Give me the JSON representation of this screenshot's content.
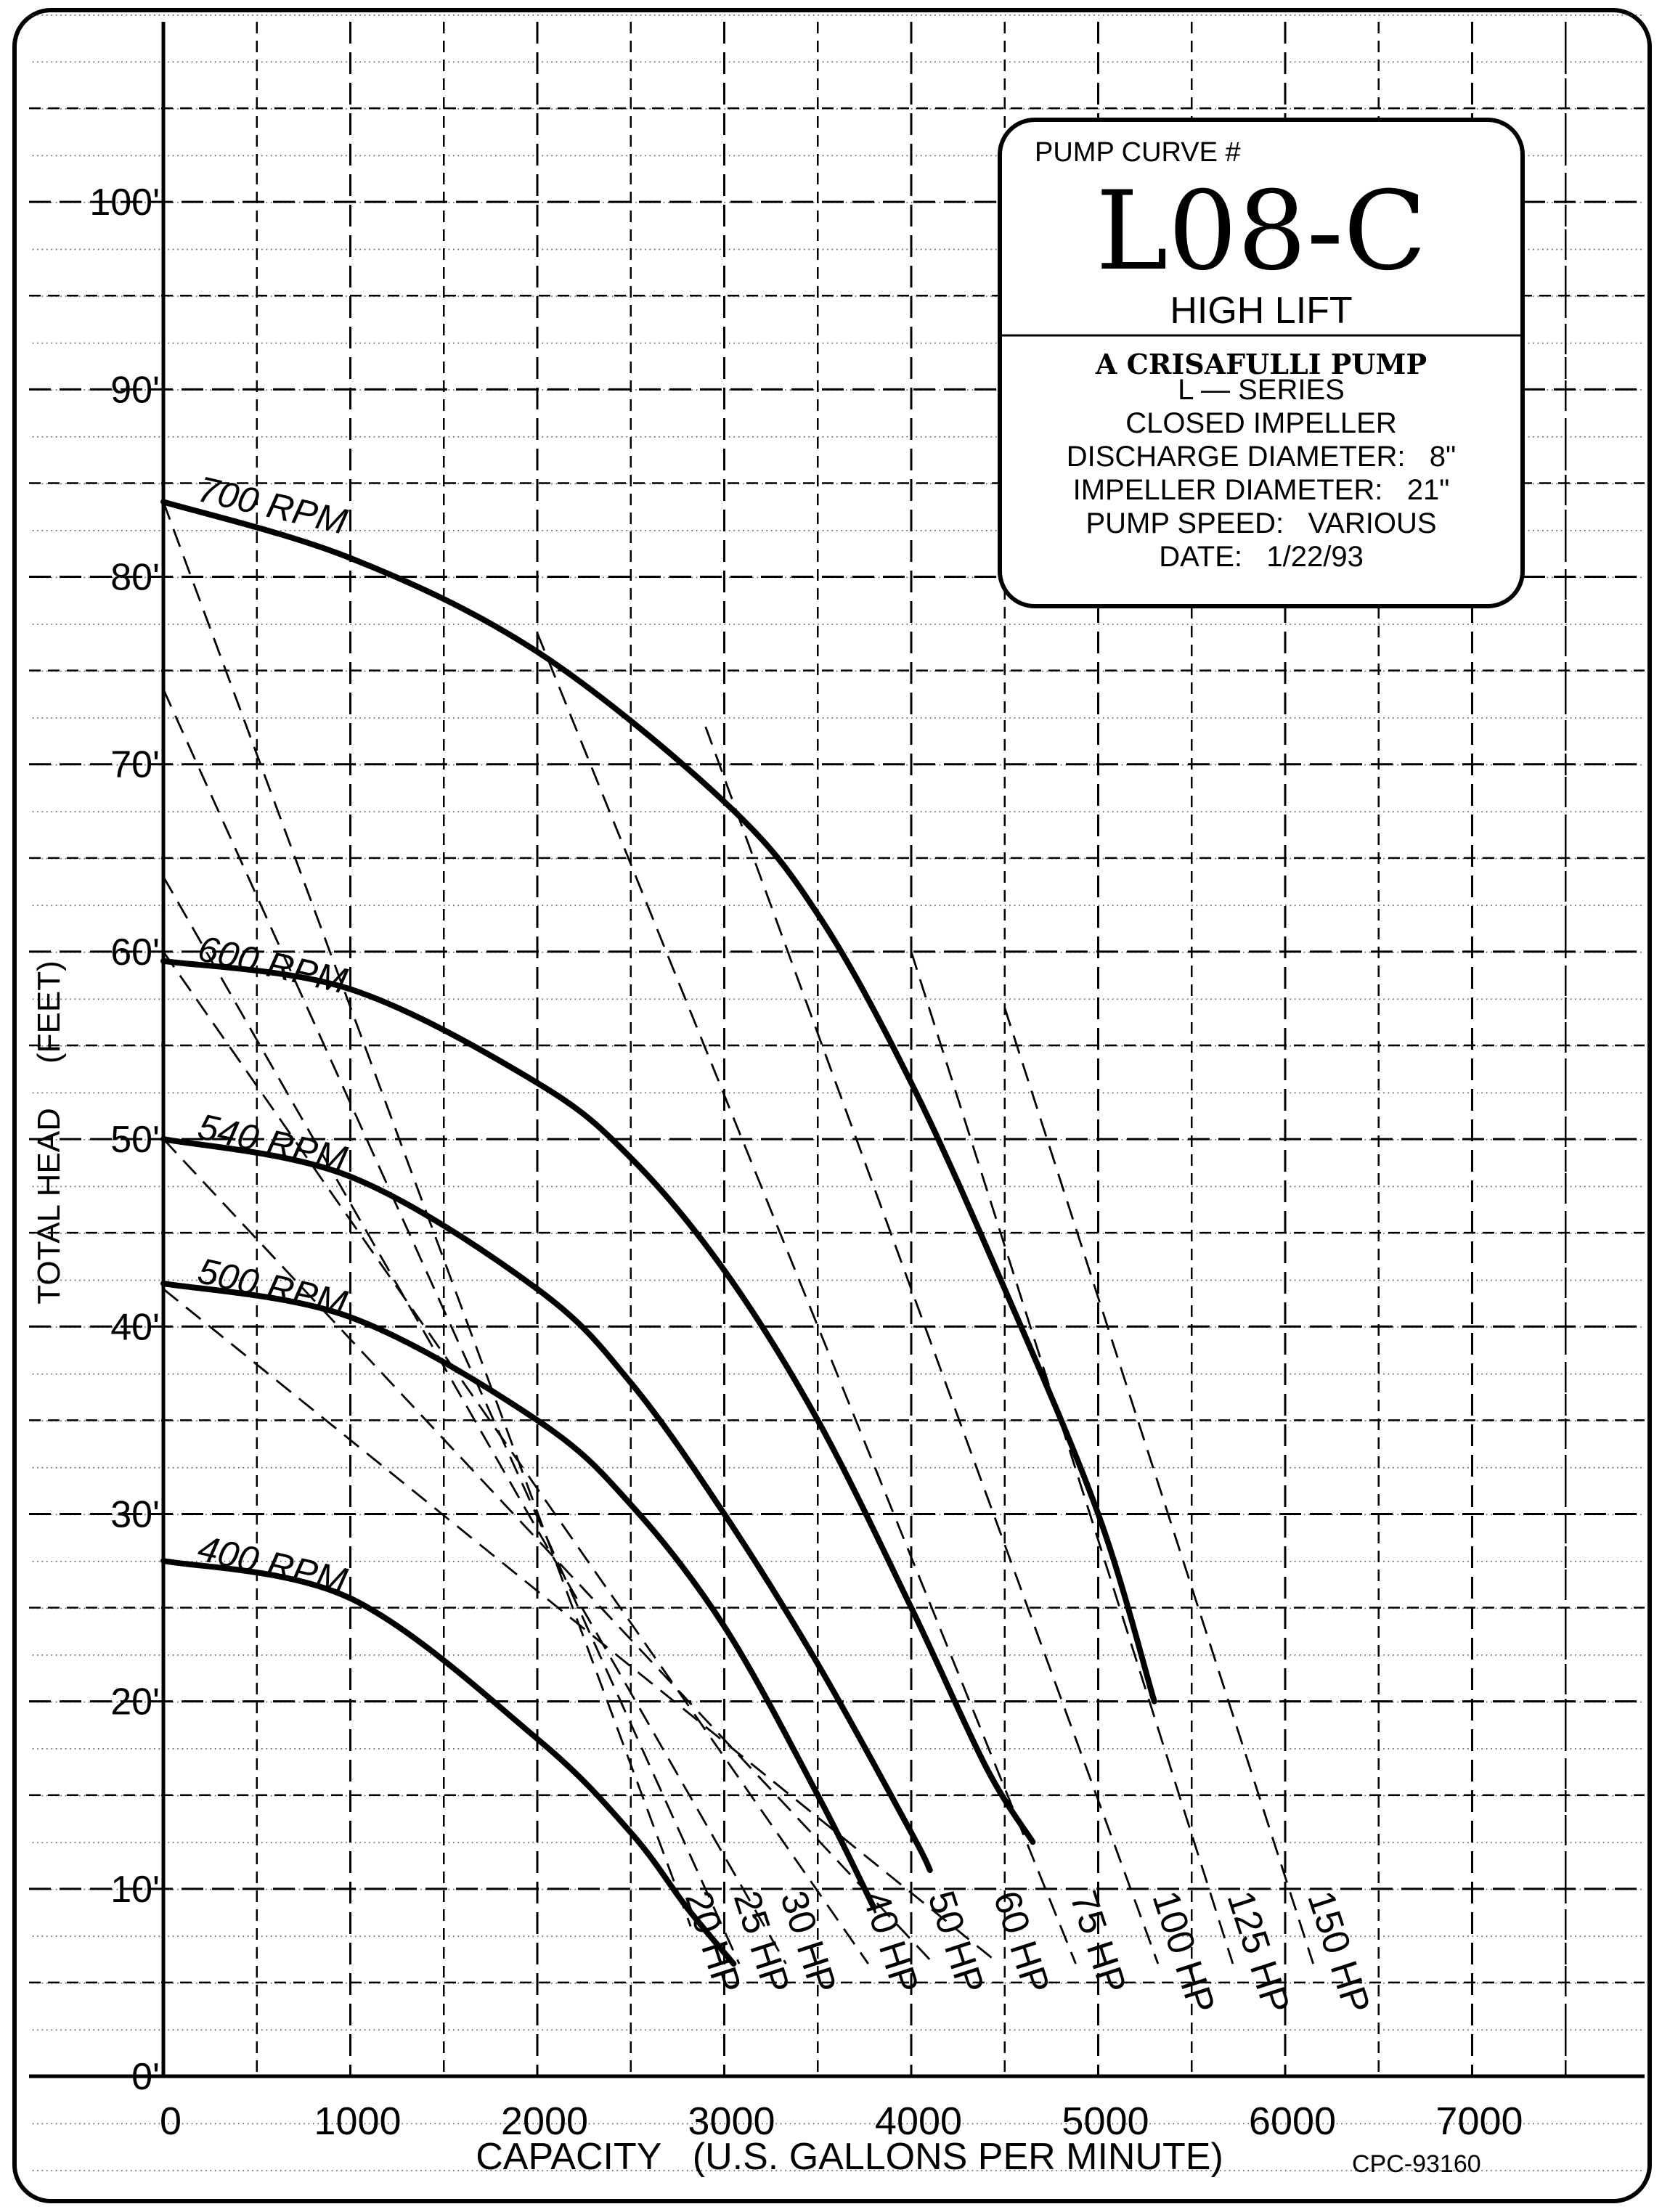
{
  "chart_data": {
    "type": "line",
    "title_box": {
      "label": "PUMP CURVE #",
      "model": "L08-C",
      "subtitle": "HIGH LIFT",
      "maker": "A CRISAFULLI PUMP",
      "specs": [
        {
          "label": "L — SERIES",
          "value": ""
        },
        {
          "label": "CLOSED IMPELLER",
          "value": ""
        },
        {
          "label": "DISCHARGE DIAMETER:",
          "value": "8\""
        },
        {
          "label": "IMPELLER DIAMETER:",
          "value": "21\""
        },
        {
          "label": "PUMP SPEED:",
          "value": "VARIOUS"
        },
        {
          "label": "DATE:",
          "value": "1/22/93"
        }
      ]
    },
    "xlabel": "CAPACITY   (U.S. GALLONS PER MINUTE)",
    "ylabel": "TOTAL HEAD     (FEET)",
    "xlim": [
      0,
      8000
    ],
    "ylim": [
      0,
      110
    ],
    "x_ticks": [
      {
        "value": 0,
        "label": "0"
      },
      {
        "value": 1000,
        "label": "1000"
      },
      {
        "value": 2000,
        "label": "2000"
      },
      {
        "value": 3000,
        "label": "3000"
      },
      {
        "value": 4000,
        "label": "4000"
      },
      {
        "value": 5000,
        "label": "5000"
      },
      {
        "value": 6000,
        "label": "6000"
      },
      {
        "value": 7000,
        "label": "7000"
      }
    ],
    "y_ticks": [
      {
        "value": 0,
        "label": "0'"
      },
      {
        "value": 10,
        "label": "10'"
      },
      {
        "value": 20,
        "label": "20'"
      },
      {
        "value": 30,
        "label": "30'"
      },
      {
        "value": 40,
        "label": "40'"
      },
      {
        "value": 50,
        "label": "50'"
      },
      {
        "value": 60,
        "label": "60'"
      },
      {
        "value": 70,
        "label": "70'"
      },
      {
        "value": 80,
        "label": "80'"
      },
      {
        "value": 90,
        "label": "90'"
      },
      {
        "value": 100,
        "label": "100'"
      }
    ],
    "grid": true,
    "series": [
      {
        "name": "700 RPM",
        "x": [
          0,
          1000,
          2000,
          3000,
          3500,
          4000,
          4500,
          5000,
          5300
        ],
        "y": [
          84,
          81,
          76,
          68,
          62,
          53,
          42,
          30,
          20
        ]
      },
      {
        "name": "600 RPM",
        "x": [
          0,
          1000,
          2000,
          2500,
          3000,
          3500,
          4000,
          4400,
          4650
        ],
        "y": [
          59.5,
          58,
          53,
          49,
          43,
          35,
          25,
          16.5,
          12.5
        ]
      },
      {
        "name": "540 RPM",
        "x": [
          0,
          1000,
          2000,
          2500,
          3000,
          3500,
          4000,
          4100
        ],
        "y": [
          50,
          48,
          42,
          37,
          30,
          22,
          13,
          11
        ]
      },
      {
        "name": "500 RPM",
        "x": [
          0,
          1000,
          2000,
          2500,
          3000,
          3500,
          3800
        ],
        "y": [
          42.3,
          40.5,
          35,
          30.5,
          24,
          15,
          9
        ]
      },
      {
        "name": "400 RPM",
        "x": [
          0,
          1000,
          2000,
          2500,
          2800,
          3050
        ],
        "y": [
          27.5,
          25.5,
          18,
          13,
          9,
          6
        ]
      }
    ],
    "hp_lines": [
      {
        "label": "20 HP",
        "x": [
          0,
          2820
        ],
        "y": [
          84,
          8
        ]
      },
      {
        "label": "25 HP",
        "x": [
          0,
          3080
        ],
        "y": [
          74,
          6
        ]
      },
      {
        "label": "30 HP",
        "x": [
          0,
          3330
        ],
        "y": [
          64,
          6
        ]
      },
      {
        "label": "40 HP",
        "x": [
          0,
          3770
        ],
        "y": [
          60,
          6
        ]
      },
      {
        "label": "50 HP",
        "x": [
          0,
          4120
        ],
        "y": [
          50,
          6
        ]
      },
      {
        "label": "60 HP",
        "x": [
          0,
          4470
        ],
        "y": [
          42,
          6
        ]
      },
      {
        "label": "75 HP",
        "x": [
          2000,
          4880
        ],
        "y": [
          77,
          6
        ]
      },
      {
        "label": "100 HP",
        "x": [
          2900,
          5320
        ],
        "y": [
          72,
          6
        ]
      },
      {
        "label": "125 HP",
        "x": [
          4000,
          5720
        ],
        "y": [
          60,
          6
        ]
      },
      {
        "label": "150 HP",
        "x": [
          4500,
          6150
        ],
        "y": [
          57,
          6
        ]
      }
    ],
    "drawing_number": "CPC-93160"
  }
}
